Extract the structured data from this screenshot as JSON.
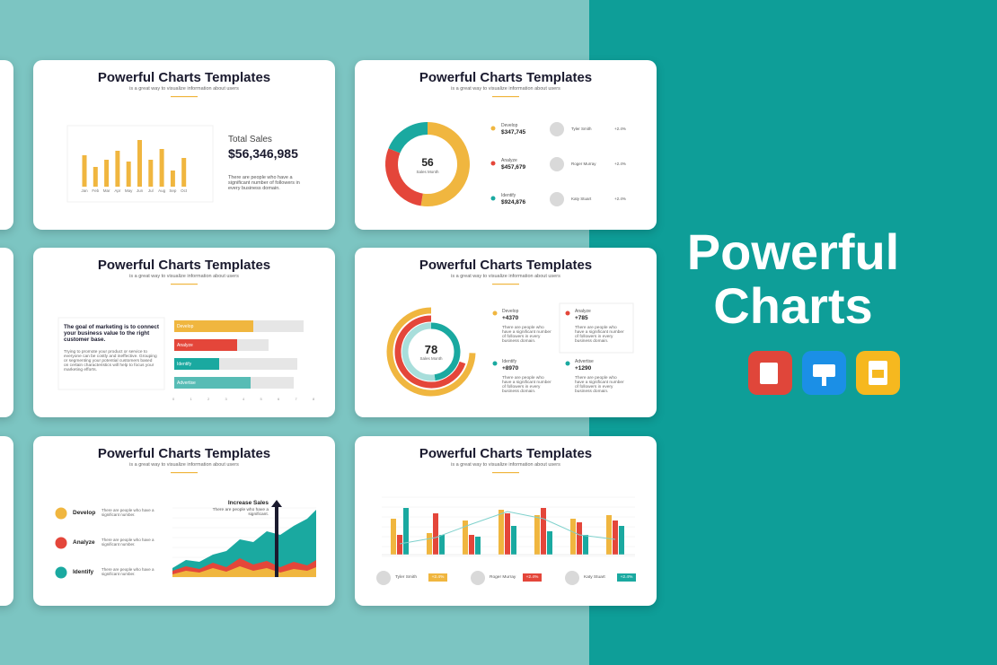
{
  "hero": {
    "line1": "Powerful",
    "line2": "Charts"
  },
  "slides": [
    {
      "title": "Powerful Charts Templates",
      "subtitle": "is a great way to visualize information about users",
      "months": [
        "Jan",
        "Feb",
        "Mar",
        "Apr",
        "May",
        "Jun",
        "Jul",
        "Aug",
        "Sep",
        "Oct"
      ],
      "label": "Total Sales",
      "value": "$56,346,985",
      "note": "There are people who have a significant number of followers in every business domain."
    },
    {
      "title": "Powerful Charts Templates",
      "subtitle": "is a great way to visualize information about users",
      "center_value": "56",
      "center_label": "Sales Month",
      "items": [
        {
          "name": "Develop",
          "value": "$347,745"
        },
        {
          "name": "Analyze",
          "value": "$457,679"
        },
        {
          "name": "Identify",
          "value": "$924,876"
        }
      ],
      "people": [
        {
          "name": "Tyler Smith",
          "change": "+2.4%"
        },
        {
          "name": "Roger Murray",
          "change": "+2.4%"
        },
        {
          "name": "Katy Stuart",
          "change": "+2.4%"
        }
      ]
    },
    {
      "title": "Powerful Charts Templates",
      "subtitle": "is a great way to visualize information about users",
      "headline": "The goal of marketing is to connect your business value to the right customer base.",
      "paragraph": "Trying to promote your product or service to everyone can be costly and ineffective. Grouping or segmenting your potential customers based on certain characteristics will help to focus your marketing efforts.",
      "bars": [
        "Develop",
        "Analyze",
        "Identify",
        "Advertise"
      ],
      "axis": [
        0,
        1,
        2,
        3,
        4,
        5,
        6,
        7,
        8
      ]
    },
    {
      "title": "Powerful Charts Templates",
      "subtitle": "is a great way to visualize information about users",
      "center_value": "78",
      "center_label": "Sales Month",
      "items": [
        {
          "name": "Develop",
          "value": "+4370",
          "note": "There are people who have a significant number of followers in every business domain."
        },
        {
          "name": "Analyze",
          "value": "+785",
          "note": "There are people who have a significant number of followers in every business domain."
        },
        {
          "name": "Identify",
          "value": "+8970",
          "note": "There are people who have a significant number of followers in every business domain."
        },
        {
          "name": "Advertise",
          "value": "+1290",
          "note": "There are people who have a significant number of followers in every business domain."
        }
      ]
    },
    {
      "title": "Powerful Charts Templates",
      "subtitle": "is a great way to visualize information about users",
      "items": [
        {
          "name": "Develop",
          "note": "There are people who have a significant number."
        },
        {
          "name": "Analyze",
          "note": "There are people who have a significant number."
        },
        {
          "name": "Identify",
          "note": "There are people who have a significant number."
        }
      ],
      "callout_title": "Increase Sales",
      "callout_note": "There are people who have a significant."
    },
    {
      "title": "Powerful Charts Templates",
      "subtitle": "is a great way to visualize information about users",
      "people": [
        {
          "name": "Tyler Smith",
          "change": "+2.4%"
        },
        {
          "name": "Roger Murray",
          "change": "+2.4%"
        },
        {
          "name": "Katy Stuart",
          "change": "+2.4%"
        }
      ]
    }
  ]
}
